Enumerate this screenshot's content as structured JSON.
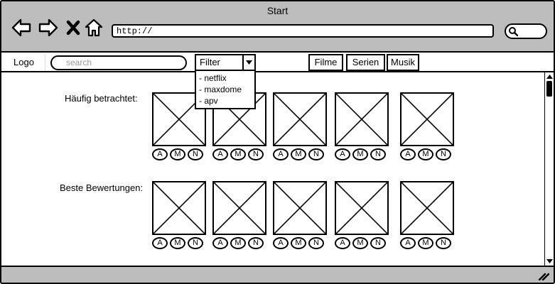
{
  "window": {
    "title": "Start"
  },
  "browser": {
    "url": "http://"
  },
  "toolbar": {
    "logo": "Logo",
    "search_placeholder": "search",
    "filter": {
      "selected": "Filter",
      "options": [
        "- netflix",
        "- maxdome",
        "- apv"
      ]
    },
    "tabs": [
      "Filme",
      "Serien",
      "Musik"
    ]
  },
  "sections": [
    {
      "label": "Häufig betrachtet:",
      "item_count": 5
    },
    {
      "label": "Beste Bewertungen:",
      "item_count": 5
    }
  ],
  "provider_badges": [
    "A",
    "M",
    "N"
  ],
  "icons": {
    "back": "arrow-left-icon",
    "forward": "arrow-right-icon",
    "stop": "x-close-icon",
    "home": "home-icon",
    "search": "magnifier-icon"
  }
}
